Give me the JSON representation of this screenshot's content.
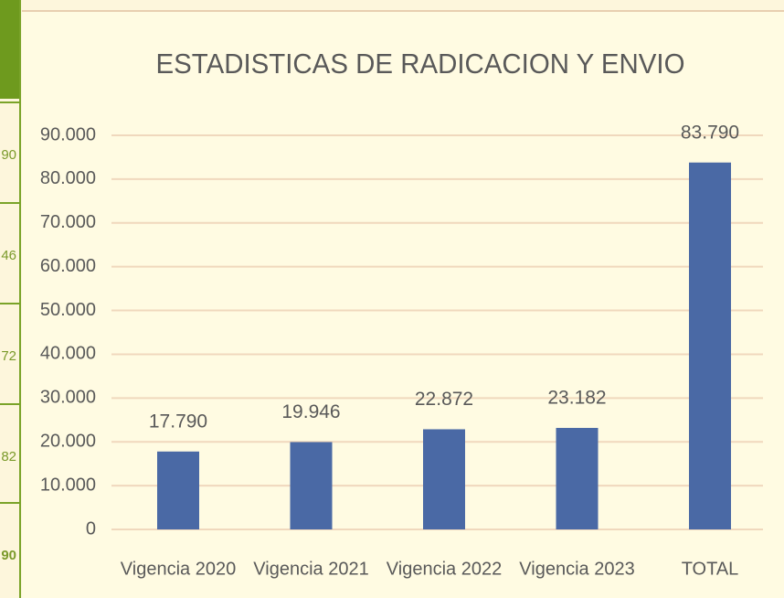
{
  "side_table": {
    "values": [
      "90",
      "46",
      "72",
      "82",
      "90"
    ]
  },
  "chart_data": {
    "type": "bar",
    "title": "ESTADISTICAS DE RADICACION Y ENVIO",
    "categories": [
      "Vigencia 2020",
      "Vigencia 2021",
      "Vigencia 2022",
      "Vigencia 2023",
      "TOTAL"
    ],
    "values": [
      17790,
      19946,
      22872,
      23182,
      83790
    ],
    "value_labels": [
      "17.790",
      "19.946",
      "22.872",
      "23.182",
      "83.790"
    ],
    "color": "#4a69a5",
    "ylim": [
      0,
      90000
    ],
    "yticks": [
      0,
      {
        "value": 10000,
        "label": "10.000"
      },
      {
        "value": 20000,
        "label": "20.000"
      },
      {
        "value": 30000,
        "label": "30.000"
      },
      {
        "value": 40000,
        "label": "40.000"
      },
      {
        "value": 50000,
        "label": "50.000"
      },
      {
        "value": 60000,
        "label": "60.000"
      },
      {
        "value": 70000,
        "label": "70.000"
      },
      {
        "value": 80000,
        "label": "80.000"
      },
      {
        "value": 90000,
        "label": "90.000"
      }
    ],
    "grid": true
  }
}
